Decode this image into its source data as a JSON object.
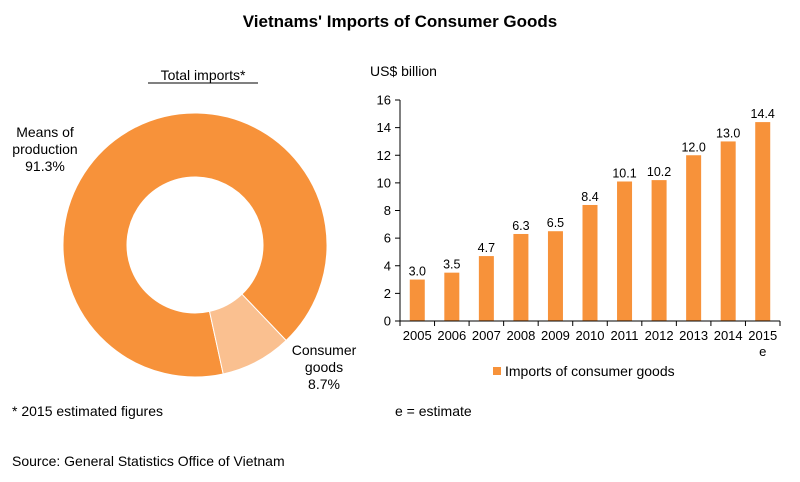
{
  "title": "Vietnams' Imports of Consumer Goods",
  "footnote": "* 2015 estimated figures",
  "estimate_note": "e = estimate",
  "source": "Source: General Statistics Office of Vietnam",
  "chart_data": [
    {
      "type": "pie",
      "title": "Total imports*",
      "donut": true,
      "slices": [
        {
          "label_lines": [
            "Means of",
            "production",
            "91.3%"
          ],
          "value": 91.3,
          "color": "#F7923A"
        },
        {
          "label_lines": [
            "Consumer",
            "goods",
            "8.7%"
          ],
          "value": 8.7,
          "color": "#FAC090"
        }
      ]
    },
    {
      "type": "bar",
      "ylabel": "US$ billion",
      "ylim": [
        0,
        16
      ],
      "yticks": [
        0,
        2,
        4,
        6,
        8,
        10,
        12,
        14,
        16
      ],
      "categories": [
        "2005",
        "2006",
        "2007",
        "2008",
        "2009",
        "2010",
        "2011",
        "2012",
        "2013",
        "2014",
        "2015"
      ],
      "category_suffix": {
        "10": "e"
      },
      "series": [
        {
          "name": "Imports of consumer goods",
          "color": "#F7923A",
          "values": [
            3.0,
            3.5,
            4.7,
            6.3,
            6.5,
            8.4,
            10.1,
            10.2,
            12.0,
            13.0,
            14.4
          ]
        }
      ],
      "legend": "bottom",
      "grid": false
    }
  ]
}
